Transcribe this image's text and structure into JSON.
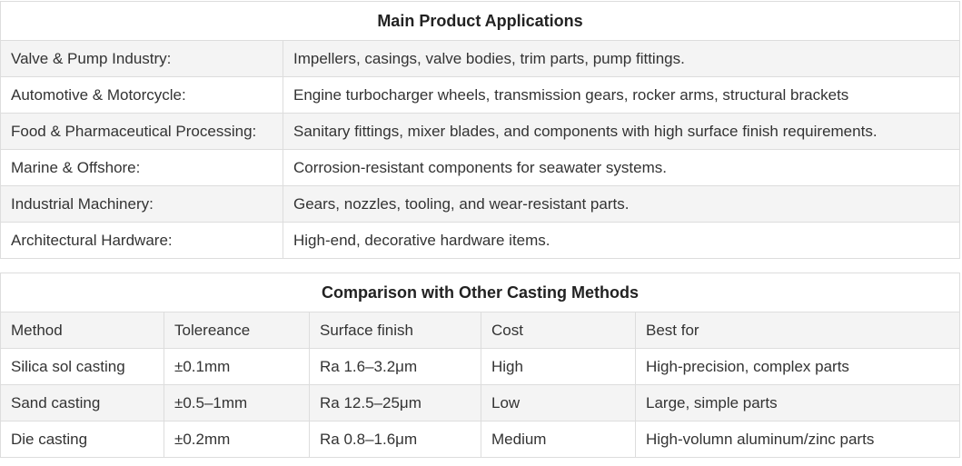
{
  "applications": {
    "title": "Main Product Applications",
    "rows": [
      [
        "Valve & Pump Industry:",
        "Impellers, casings, valve bodies, trim parts, pump fittings."
      ],
      [
        "Automotive & Motorcycle:",
        "Engine turbocharger wheels, transmission gears, rocker arms, structural brackets"
      ],
      [
        "Food & Pharmaceutical Processing:",
        "Sanitary fittings, mixer blades, and components with high surface finish requirements."
      ],
      [
        "Marine & Offshore:",
        "Corrosion-resistant components for seawater systems."
      ],
      [
        "Industrial Machinery:",
        "Gears, nozzles, tooling, and wear-resistant parts."
      ],
      [
        "Architectural Hardware:",
        "High-end, decorative hardware items."
      ]
    ]
  },
  "comparison": {
    "title": "Comparison with Other Casting Methods",
    "rows": [
      [
        "Method",
        "Tolereance",
        "Surface finish",
        "Cost",
        "Best for"
      ],
      [
        "Silica sol casting",
        "±0.1mm",
        "Ra 1.6–3.2μm",
        "High",
        "High-precision, complex parts"
      ],
      [
        "Sand casting",
        "±0.5–1mm",
        "Ra 12.5–25μm",
        "Low",
        "Large, simple parts"
      ],
      [
        "Die casting",
        "±0.2mm",
        "Ra 0.8–1.6μm",
        "Medium",
        "High-volumn aluminum/zinc parts"
      ]
    ]
  }
}
